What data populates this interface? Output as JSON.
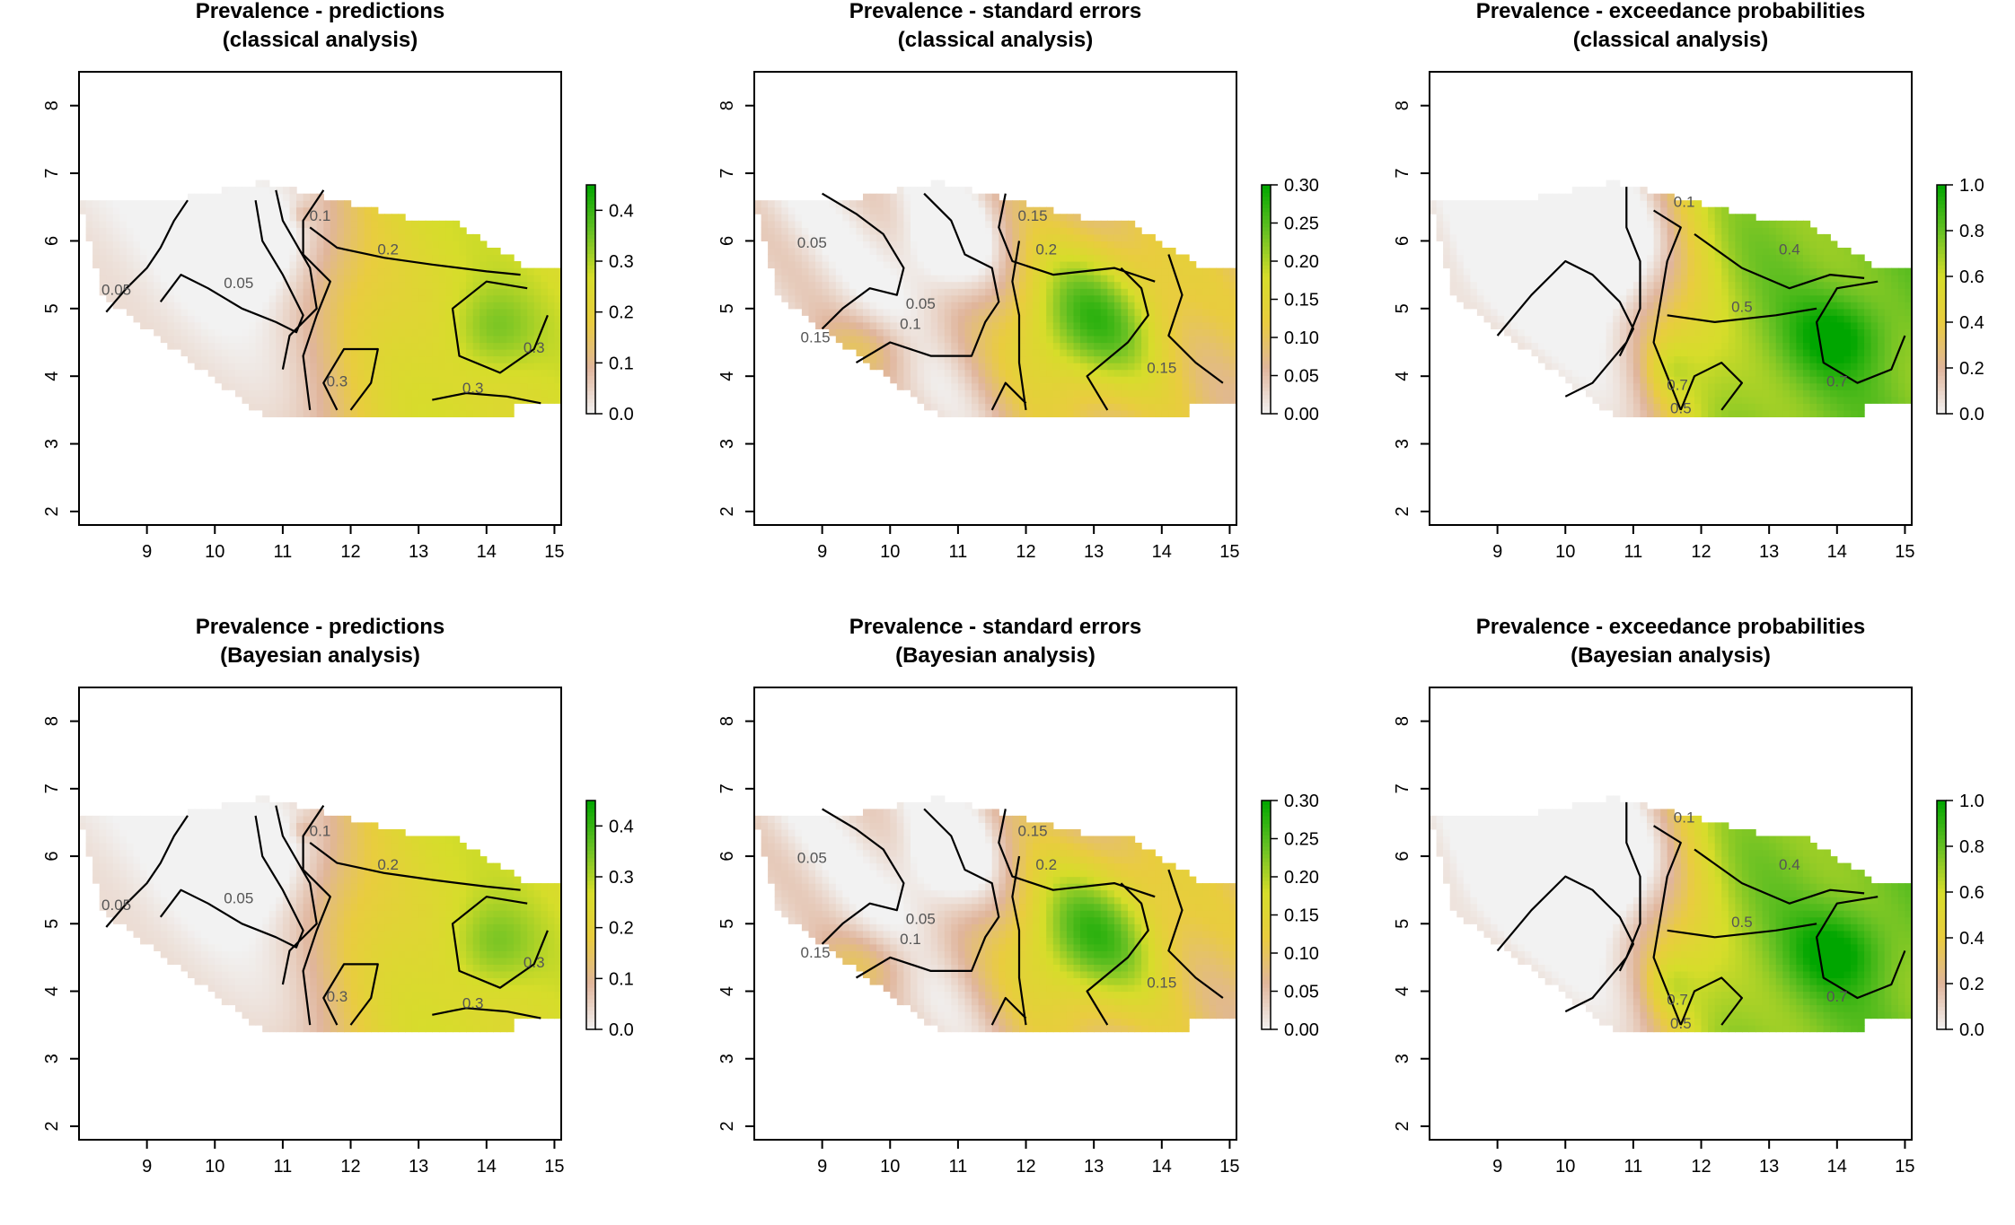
{
  "chart_data": [
    {
      "type": "heatmap",
      "title_line1": "Prevalence - predictions",
      "title_line2": "(classical analysis)",
      "xlim": [
        8.0,
        15.1
      ],
      "ylim": [
        1.8,
        8.5
      ],
      "xticks": [
        "9",
        "10",
        "11",
        "12",
        "13",
        "14",
        "15"
      ],
      "yticks": [
        "2",
        "3",
        "4",
        "5",
        "6",
        "7",
        "8"
      ],
      "legend_ticks": [
        "0.0",
        "0.1",
        "0.2",
        "0.3",
        "0.4"
      ],
      "legend_range": [
        0,
        0.45
      ],
      "contour_labels": [
        "0.05",
        "0.05",
        "0.1",
        "0.2",
        "0.3",
        "0.3",
        "0.3"
      ],
      "palette": [
        "#f2f2f2",
        "#e0b59c",
        "#e9cc3f",
        "#d6dd2a",
        "#66c023",
        "#00a600"
      ]
    },
    {
      "type": "heatmap",
      "title_line1": "Prevalence - standard errors",
      "title_line2": "(classical analysis)",
      "xlim": [
        8.0,
        15.1
      ],
      "ylim": [
        1.8,
        8.5
      ],
      "xticks": [
        "9",
        "10",
        "11",
        "12",
        "13",
        "14",
        "15"
      ],
      "yticks": [
        "2",
        "3",
        "4",
        "5",
        "6",
        "7",
        "8"
      ],
      "legend_ticks": [
        "0.00",
        "0.05",
        "0.10",
        "0.15",
        "0.20",
        "0.25",
        "0.30"
      ],
      "legend_range": [
        0,
        0.3
      ],
      "contour_labels": [
        "0.05",
        "0.05",
        "0.1",
        "0.15",
        "0.15",
        "0.2",
        "0.15"
      ],
      "palette": [
        "#f2f2f2",
        "#e0b59c",
        "#e9cc3f",
        "#d6dd2a",
        "#66c023",
        "#00a600"
      ]
    },
    {
      "type": "heatmap",
      "title_line1": "Prevalence - exceedance probabilities",
      "title_line2": "(classical analysis)",
      "xlim": [
        8.0,
        15.1
      ],
      "ylim": [
        1.8,
        8.5
      ],
      "xticks": [
        "9",
        "10",
        "11",
        "12",
        "13",
        "14",
        "15"
      ],
      "yticks": [
        "2",
        "3",
        "4",
        "5",
        "6",
        "7",
        "8"
      ],
      "legend_ticks": [
        "0.0",
        "0.2",
        "0.4",
        "0.6",
        "0.8",
        "1.0"
      ],
      "legend_range": [
        0,
        1.0
      ],
      "contour_labels": [
        "0.1",
        "0.4",
        "0.5",
        "0.7",
        "0.7",
        "0.5"
      ],
      "palette": [
        "#f2f2f2",
        "#e0b59c",
        "#e9cc3f",
        "#d6dd2a",
        "#66c023",
        "#00a600"
      ]
    },
    {
      "type": "heatmap",
      "title_line1": "Prevalence - predictions",
      "title_line2": "(Bayesian analysis)",
      "xlim": [
        8.0,
        15.1
      ],
      "ylim": [
        1.8,
        8.5
      ],
      "xticks": [
        "9",
        "10",
        "11",
        "12",
        "13",
        "14",
        "15"
      ],
      "yticks": [
        "2",
        "3",
        "4",
        "5",
        "6",
        "7",
        "8"
      ],
      "legend_ticks": [
        "0.0",
        "0.1",
        "0.2",
        "0.3",
        "0.4"
      ],
      "legend_range": [
        0,
        0.45
      ],
      "contour_labels": [
        "0.05",
        "0.05",
        "0.1",
        "0.2",
        "0.3",
        "0.3",
        "0.3"
      ],
      "palette": [
        "#f2f2f2",
        "#e0b59c",
        "#e9cc3f",
        "#d6dd2a",
        "#66c023",
        "#00a600"
      ]
    },
    {
      "type": "heatmap",
      "title_line1": "Prevalence - standard errors",
      "title_line2": "(Bayesian analysis)",
      "xlim": [
        8.0,
        15.1
      ],
      "ylim": [
        1.8,
        8.5
      ],
      "xticks": [
        "9",
        "10",
        "11",
        "12",
        "13",
        "14",
        "15"
      ],
      "yticks": [
        "2",
        "3",
        "4",
        "5",
        "6",
        "7",
        "8"
      ],
      "legend_ticks": [
        "0.00",
        "0.05",
        "0.10",
        "0.15",
        "0.20",
        "0.25",
        "0.30"
      ],
      "legend_range": [
        0,
        0.3
      ],
      "contour_labels": [
        "0.05",
        "0.05",
        "0.1",
        "0.15",
        "0.15",
        "0.2",
        "0.15"
      ],
      "palette": [
        "#f2f2f2",
        "#e0b59c",
        "#e9cc3f",
        "#d6dd2a",
        "#66c023",
        "#00a600"
      ]
    },
    {
      "type": "heatmap",
      "title_line1": "Prevalence - exceedance probabilities",
      "title_line2": "(Bayesian analysis)",
      "xlim": [
        8.0,
        15.1
      ],
      "ylim": [
        1.8,
        8.5
      ],
      "xticks": [
        "9",
        "10",
        "11",
        "12",
        "13",
        "14",
        "15"
      ],
      "yticks": [
        "2",
        "3",
        "4",
        "5",
        "6",
        "7",
        "8"
      ],
      "legend_ticks": [
        "0.0",
        "0.2",
        "0.4",
        "0.6",
        "0.8",
        "1.0"
      ],
      "legend_range": [
        0,
        1.0
      ],
      "contour_labels": [
        "0.1",
        "0.4",
        "0.5",
        "0.7",
        "0.7",
        "0.5"
      ],
      "palette": [
        "#f2f2f2",
        "#e0b59c",
        "#e9cc3f",
        "#d6dd2a",
        "#66c023",
        "#00a600"
      ]
    }
  ]
}
